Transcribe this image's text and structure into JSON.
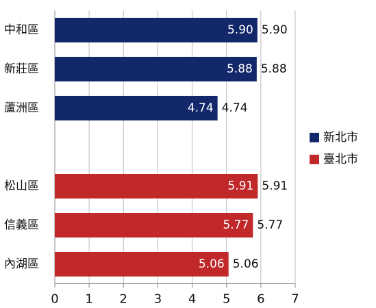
{
  "chart_data": {
    "type": "hbar",
    "categories": [
      "中和區",
      "新莊區",
      "蘆洲區",
      null,
      "松山區",
      "信義區",
      "內湖區"
    ],
    "series": [
      {
        "name": "新北市",
        "color": "#13286b",
        "values": [
          5.9,
          5.88,
          4.74,
          null,
          null,
          null,
          null
        ],
        "value_labels": [
          "5.90",
          "5.88",
          "4.74",
          null,
          null,
          null,
          null
        ]
      },
      {
        "name": "臺北市",
        "color": "#c0282a",
        "values": [
          null,
          null,
          null,
          null,
          5.91,
          5.77,
          5.06
        ],
        "value_labels": [
          null,
          null,
          null,
          null,
          "5.91",
          "5.77",
          "5.06"
        ]
      }
    ],
    "xlim": [
      0,
      7
    ],
    "xticks": [
      0,
      1,
      2,
      3,
      4,
      5,
      6,
      7
    ],
    "grid": true,
    "legend": "right"
  }
}
